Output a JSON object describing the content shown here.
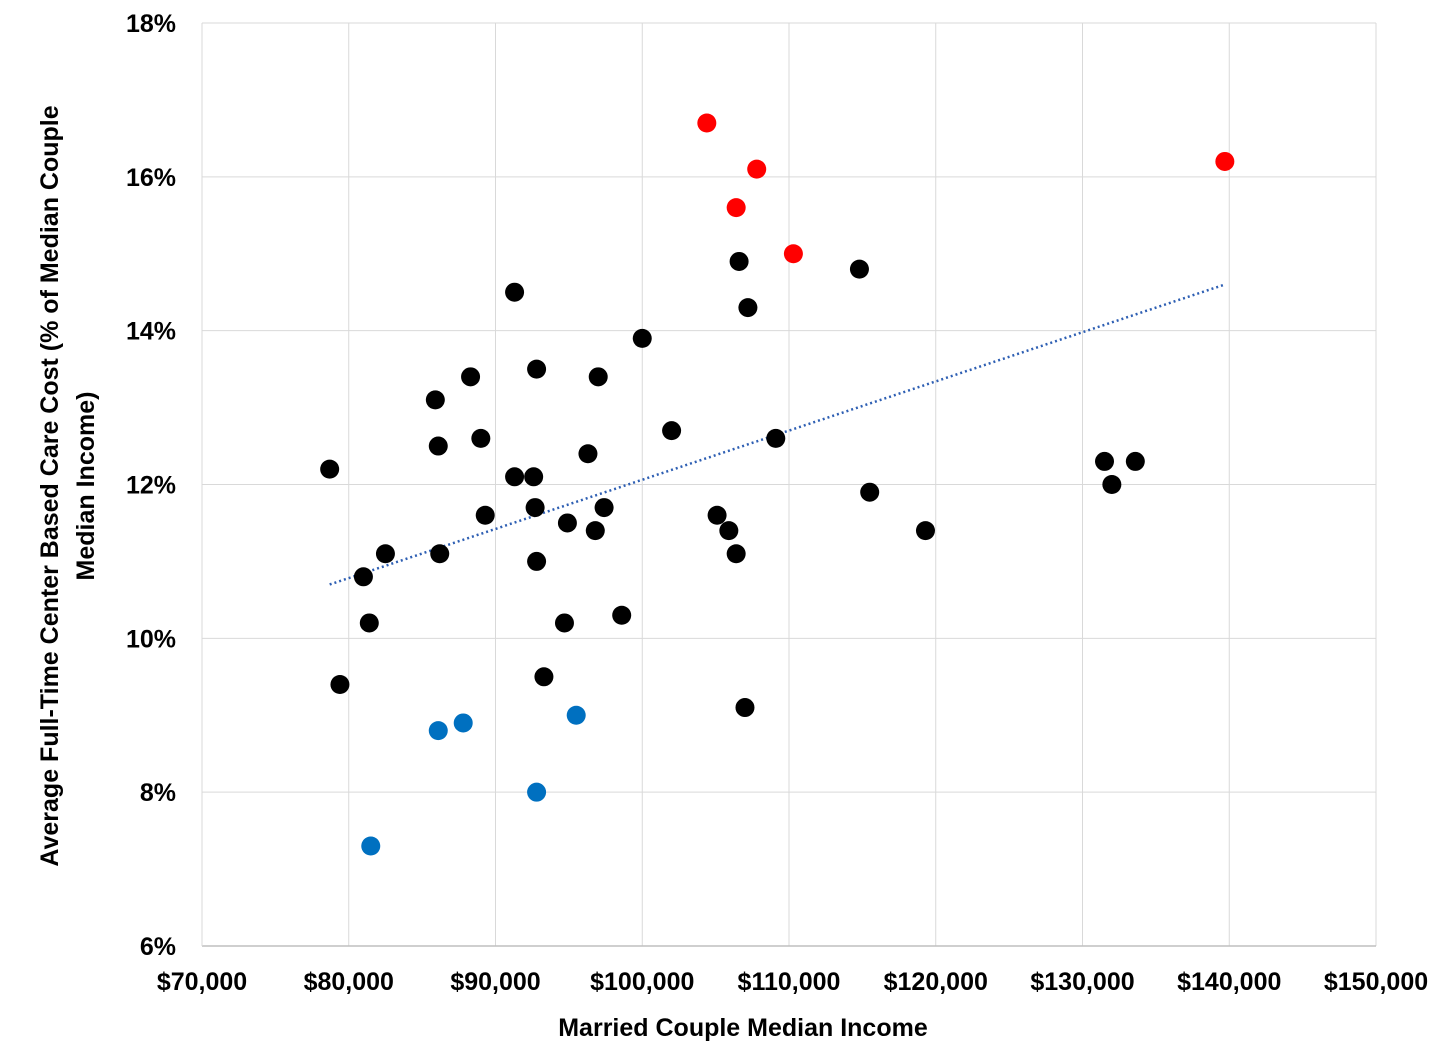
{
  "chart_data": {
    "type": "scatter",
    "title": "",
    "xlabel": "Married Couple Median Income",
    "ylabel_lines": [
      "Average Full-Time Center Based Care Cost (% of Median Couple",
      "Median Income)"
    ],
    "xlim": [
      70000,
      150000
    ],
    "ylim": [
      6,
      18
    ],
    "x_ticks": [
      70000,
      80000,
      90000,
      100000,
      110000,
      120000,
      130000,
      140000,
      150000
    ],
    "x_tick_labels": [
      "$70,000",
      "$80,000",
      "$90,000",
      "$100,000",
      "$110,000",
      "$120,000",
      "$130,000",
      "$140,000",
      "$150,000"
    ],
    "y_ticks": [
      6,
      8,
      10,
      12,
      14,
      16,
      18
    ],
    "y_tick_labels": [
      "6%",
      "8%",
      "10%",
      "12%",
      "14%",
      "16%",
      "18%"
    ],
    "grid": true,
    "colors": {
      "default": "#000000",
      "high": "#ff0000",
      "low": "#0070c0",
      "trend": "#2e5fb3"
    },
    "series": [
      {
        "color": "default",
        "points": [
          [
            78700,
            12.2
          ],
          [
            79400,
            9.4
          ],
          [
            81000,
            10.8
          ],
          [
            81400,
            10.2
          ],
          [
            82500,
            11.1
          ],
          [
            85900,
            13.1
          ],
          [
            86100,
            12.5
          ],
          [
            86200,
            11.1
          ],
          [
            88300,
            13.4
          ],
          [
            89000,
            12.6
          ],
          [
            89300,
            11.6
          ],
          [
            91300,
            14.5
          ],
          [
            91300,
            12.1
          ],
          [
            92600,
            12.1
          ],
          [
            92700,
            11.7
          ],
          [
            92800,
            13.5
          ],
          [
            92800,
            11.0
          ],
          [
            93300,
            9.5
          ],
          [
            94700,
            10.2
          ],
          [
            94900,
            11.5
          ],
          [
            96300,
            12.4
          ],
          [
            96800,
            11.4
          ],
          [
            97000,
            13.4
          ],
          [
            97400,
            11.7
          ],
          [
            98600,
            10.3
          ],
          [
            100000,
            13.9
          ],
          [
            102000,
            12.7
          ],
          [
            105100,
            11.6
          ],
          [
            105900,
            11.4
          ],
          [
            106400,
            11.1
          ],
          [
            106600,
            14.9
          ],
          [
            107000,
            9.1
          ],
          [
            107200,
            14.3
          ],
          [
            109100,
            12.6
          ],
          [
            114800,
            14.8
          ],
          [
            115500,
            11.9
          ],
          [
            119300,
            11.4
          ],
          [
            131500,
            12.3
          ],
          [
            132000,
            12.0
          ],
          [
            133600,
            12.3
          ]
        ]
      },
      {
        "color": "high",
        "points": [
          [
            104400,
            16.7
          ],
          [
            106400,
            15.6
          ],
          [
            107800,
            16.1
          ],
          [
            110300,
            15.0
          ],
          [
            139700,
            16.2
          ]
        ]
      },
      {
        "color": "low",
        "points": [
          [
            81500,
            7.3
          ],
          [
            86100,
            8.8
          ],
          [
            87800,
            8.9
          ],
          [
            92800,
            8.0
          ],
          [
            95500,
            9.0
          ]
        ]
      }
    ],
    "trendline": {
      "type": "linear",
      "x": [
        78700,
        139700
      ],
      "y": [
        10.7,
        14.6
      ]
    }
  }
}
